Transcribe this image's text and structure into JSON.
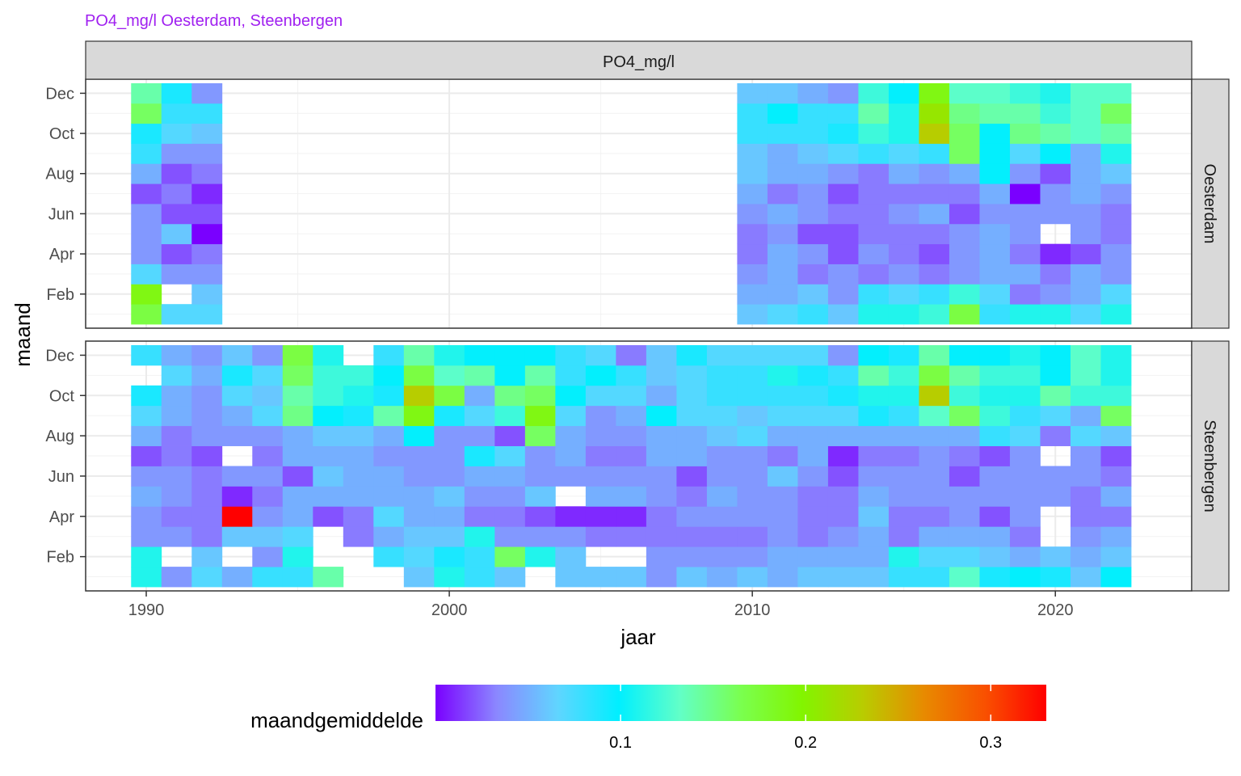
{
  "chart_data": {
    "type": "heatmap",
    "title": "PO4_mg/l Oesterdam, Steenbergen",
    "strip_top": "PO4_mg/l",
    "xlabel": "jaar",
    "ylabel": "maand",
    "x_ticks": [
      1990,
      2000,
      2010,
      2020
    ],
    "y_ticks": [
      {
        "month": 2,
        "label": "Feb"
      },
      {
        "month": 4,
        "label": "Apr"
      },
      {
        "month": 6,
        "label": "Jun"
      },
      {
        "month": 8,
        "label": "Aug"
      },
      {
        "month": 10,
        "label": "Oct"
      },
      {
        "month": 12,
        "label": "Dec"
      }
    ],
    "xlim": [
      1988,
      2024.5
    ],
    "ylim": [
      0.3,
      12.7
    ],
    "grid": true,
    "legend": {
      "title": "maandgemiddelde",
      "position": "bottom",
      "range": [
        0,
        0.33
      ],
      "ticks": [
        0.1,
        0.2,
        0.3
      ],
      "colors": [
        "#7A00FF",
        "#8B87FF",
        "#60D5FF",
        "#00EFFF",
        "#62FFC7",
        "#7AFF4F",
        "#82F500",
        "#B9CC00",
        "#E88A00",
        "#F95000",
        "#FF0000"
      ]
    },
    "panels": [
      {
        "name": "Oesterdam",
        "years": [
          1990,
          1991,
          1992,
          2010,
          2011,
          2012,
          2013,
          2014,
          2015,
          2016,
          2017,
          2018,
          2019,
          2020,
          2021,
          2022
        ],
        "values": [
          [
            0.17,
            0.07,
            0.07,
            0.06,
            0.07,
            0.08,
            0.06,
            0.11,
            0.11,
            0.12,
            0.17,
            0.08,
            0.11,
            0.11,
            0.07,
            0.11
          ],
          [
            0.19,
            null,
            0.06,
            0.05,
            0.05,
            0.06,
            0.04,
            0.08,
            0.07,
            0.08,
            0.12,
            0.07,
            0.03,
            0.04,
            0.05,
            0.07
          ],
          [
            0.07,
            0.04,
            0.04,
            0.04,
            0.05,
            0.03,
            0.04,
            0.03,
            0.04,
            0.03,
            0.04,
            0.05,
            0.05,
            0.03,
            0.05,
            0.04
          ],
          [
            0.04,
            0.02,
            0.03,
            0.03,
            0.05,
            0.04,
            0.02,
            0.04,
            0.03,
            0.02,
            0.04,
            0.05,
            0.03,
            0.01,
            0.02,
            0.04
          ],
          [
            0.04,
            0.06,
            0.0,
            0.03,
            0.04,
            0.02,
            0.02,
            0.03,
            0.03,
            0.03,
            0.04,
            0.05,
            0.04,
            null,
            0.04,
            0.03
          ],
          [
            0.04,
            0.02,
            0.02,
            0.04,
            0.05,
            0.04,
            0.03,
            0.03,
            0.04,
            0.05,
            0.02,
            0.04,
            0.04,
            0.04,
            0.04,
            0.03
          ],
          [
            0.02,
            0.03,
            0.01,
            0.05,
            0.03,
            0.04,
            0.02,
            0.03,
            0.03,
            0.03,
            0.03,
            0.05,
            0.0,
            0.04,
            0.05,
            0.04
          ],
          [
            0.05,
            0.02,
            0.03,
            0.06,
            0.05,
            0.05,
            0.04,
            0.03,
            0.05,
            0.04,
            0.05,
            0.1,
            0.04,
            0.02,
            0.05,
            0.06
          ],
          [
            0.08,
            0.04,
            0.04,
            0.06,
            0.05,
            0.06,
            0.07,
            0.08,
            0.07,
            0.08,
            0.16,
            0.1,
            0.07,
            0.1,
            0.05,
            0.11
          ],
          [
            0.09,
            0.07,
            0.06,
            0.08,
            0.08,
            0.08,
            0.09,
            0.12,
            0.11,
            0.23,
            0.16,
            0.1,
            0.15,
            0.14,
            0.13,
            0.14
          ],
          [
            0.16,
            0.08,
            0.08,
            0.08,
            0.1,
            0.08,
            0.08,
            0.14,
            0.11,
            0.21,
            0.15,
            0.14,
            0.14,
            0.12,
            0.13,
            0.16
          ],
          [
            0.14,
            0.09,
            0.04,
            0.06,
            0.06,
            0.05,
            0.04,
            0.12,
            0.1,
            0.19,
            0.13,
            0.13,
            0.12,
            0.11,
            0.13,
            0.13
          ]
        ]
      },
      {
        "name": "Steenbergen",
        "years": [
          1990,
          1991,
          1992,
          1993,
          1994,
          1995,
          1996,
          1997,
          1998,
          1999,
          2000,
          2001,
          2002,
          2003,
          2004,
          2005,
          2006,
          2007,
          2008,
          2009,
          2010,
          2011,
          2012,
          2013,
          2014,
          2015,
          2016,
          2017,
          2018,
          2019,
          2020,
          2021,
          2022
        ],
        "values": [
          [
            0.11,
            0.04,
            0.07,
            0.05,
            0.08,
            0.08,
            0.14,
            null,
            null,
            0.06,
            0.11,
            0.08,
            0.06,
            null,
            0.06,
            0.06,
            0.06,
            0.04,
            0.06,
            0.05,
            0.06,
            0.05,
            0.06,
            0.06,
            0.06,
            0.08,
            0.08,
            0.13,
            0.09,
            0.1,
            0.09,
            0.06,
            0.1
          ],
          [
            0.11,
            null,
            0.06,
            null,
            0.04,
            0.11,
            null,
            null,
            0.08,
            0.07,
            0.09,
            0.08,
            0.16,
            0.11,
            0.06,
            null,
            null,
            0.04,
            0.04,
            0.04,
            0.04,
            0.05,
            0.05,
            0.05,
            0.05,
            0.11,
            0.07,
            0.07,
            0.06,
            0.05,
            0.06,
            0.05,
            0.06
          ],
          [
            0.04,
            0.04,
            0.03,
            0.06,
            0.06,
            0.07,
            null,
            0.03,
            0.05,
            0.06,
            0.06,
            0.11,
            0.04,
            0.04,
            0.04,
            0.03,
            0.03,
            0.03,
            0.03,
            0.03,
            0.03,
            0.04,
            0.03,
            0.04,
            0.05,
            0.03,
            0.05,
            0.05,
            0.05,
            0.03,
            null,
            0.04,
            0.05
          ],
          [
            0.04,
            0.03,
            0.03,
            0.33,
            0.04,
            0.05,
            0.02,
            0.03,
            0.07,
            0.05,
            0.05,
            0.03,
            0.03,
            0.02,
            0.01,
            0.01,
            0.01,
            0.03,
            0.04,
            0.04,
            0.04,
            0.04,
            0.03,
            0.03,
            0.06,
            0.03,
            0.03,
            0.04,
            0.02,
            0.04,
            null,
            0.03,
            0.03
          ],
          [
            0.05,
            0.04,
            0.03,
            0.01,
            0.03,
            0.05,
            0.05,
            0.05,
            0.05,
            0.05,
            0.06,
            0.04,
            0.04,
            0.06,
            null,
            0.05,
            0.05,
            0.04,
            0.03,
            0.05,
            0.04,
            0.04,
            0.03,
            0.03,
            0.05,
            0.04,
            0.04,
            0.04,
            0.04,
            0.04,
            0.04,
            0.03,
            0.05
          ],
          [
            0.04,
            0.04,
            0.03,
            0.04,
            0.04,
            0.02,
            0.06,
            0.05,
            0.05,
            0.04,
            0.04,
            0.05,
            0.05,
            0.04,
            0.04,
            0.04,
            0.04,
            0.04,
            0.02,
            0.04,
            0.04,
            0.06,
            0.04,
            0.02,
            0.04,
            0.04,
            0.04,
            0.02,
            0.04,
            0.04,
            0.04,
            0.04,
            0.03
          ],
          [
            0.02,
            0.03,
            0.02,
            null,
            0.03,
            0.05,
            0.05,
            0.05,
            0.04,
            0.04,
            0.04,
            0.09,
            0.07,
            0.04,
            0.05,
            0.03,
            0.03,
            0.05,
            0.05,
            0.04,
            0.04,
            0.03,
            0.05,
            0.01,
            0.03,
            0.03,
            0.04,
            0.03,
            0.02,
            0.04,
            null,
            0.04,
            0.02
          ],
          [
            0.05,
            0.03,
            0.04,
            0.04,
            0.04,
            0.05,
            0.06,
            0.06,
            0.05,
            0.1,
            0.04,
            0.04,
            0.02,
            0.16,
            0.05,
            0.04,
            0.04,
            0.05,
            0.05,
            0.06,
            0.07,
            0.05,
            0.05,
            0.05,
            0.05,
            0.05,
            0.05,
            0.05,
            0.08,
            0.07,
            0.03,
            0.07,
            0.06
          ],
          [
            0.07,
            0.05,
            0.04,
            0.05,
            0.07,
            0.15,
            0.1,
            0.09,
            0.14,
            0.19,
            0.09,
            0.07,
            0.12,
            0.19,
            0.07,
            0.04,
            0.05,
            0.1,
            0.07,
            0.07,
            0.06,
            0.07,
            0.07,
            0.07,
            0.09,
            0.08,
            0.13,
            0.16,
            0.12,
            0.08,
            0.07,
            0.05,
            0.16
          ],
          [
            0.09,
            0.05,
            0.04,
            0.07,
            0.06,
            0.14,
            0.12,
            0.11,
            0.09,
            0.23,
            0.17,
            0.05,
            0.15,
            0.16,
            0.1,
            0.07,
            0.07,
            0.05,
            0.07,
            0.08,
            0.08,
            0.08,
            0.08,
            0.09,
            0.11,
            0.11,
            0.23,
            0.12,
            0.11,
            0.11,
            0.14,
            0.12,
            0.12
          ],
          [
            null,
            0.07,
            0.05,
            0.09,
            0.07,
            0.16,
            0.12,
            0.12,
            0.1,
            0.17,
            0.13,
            0.14,
            0.1,
            0.14,
            0.08,
            0.1,
            0.08,
            0.06,
            0.07,
            0.08,
            0.08,
            0.11,
            0.09,
            0.08,
            0.14,
            0.12,
            0.17,
            0.14,
            0.12,
            0.12,
            0.1,
            0.13,
            0.11
          ],
          [
            0.08,
            0.05,
            0.04,
            0.06,
            0.04,
            0.17,
            0.11,
            null,
            0.08,
            0.14,
            0.11,
            0.1,
            0.1,
            0.1,
            0.08,
            0.07,
            0.03,
            0.06,
            0.09,
            0.07,
            0.07,
            0.07,
            0.07,
            0.04,
            0.1,
            0.09,
            0.14,
            0.1,
            0.1,
            0.11,
            0.1,
            0.13,
            0.11
          ]
        ]
      }
    ]
  }
}
